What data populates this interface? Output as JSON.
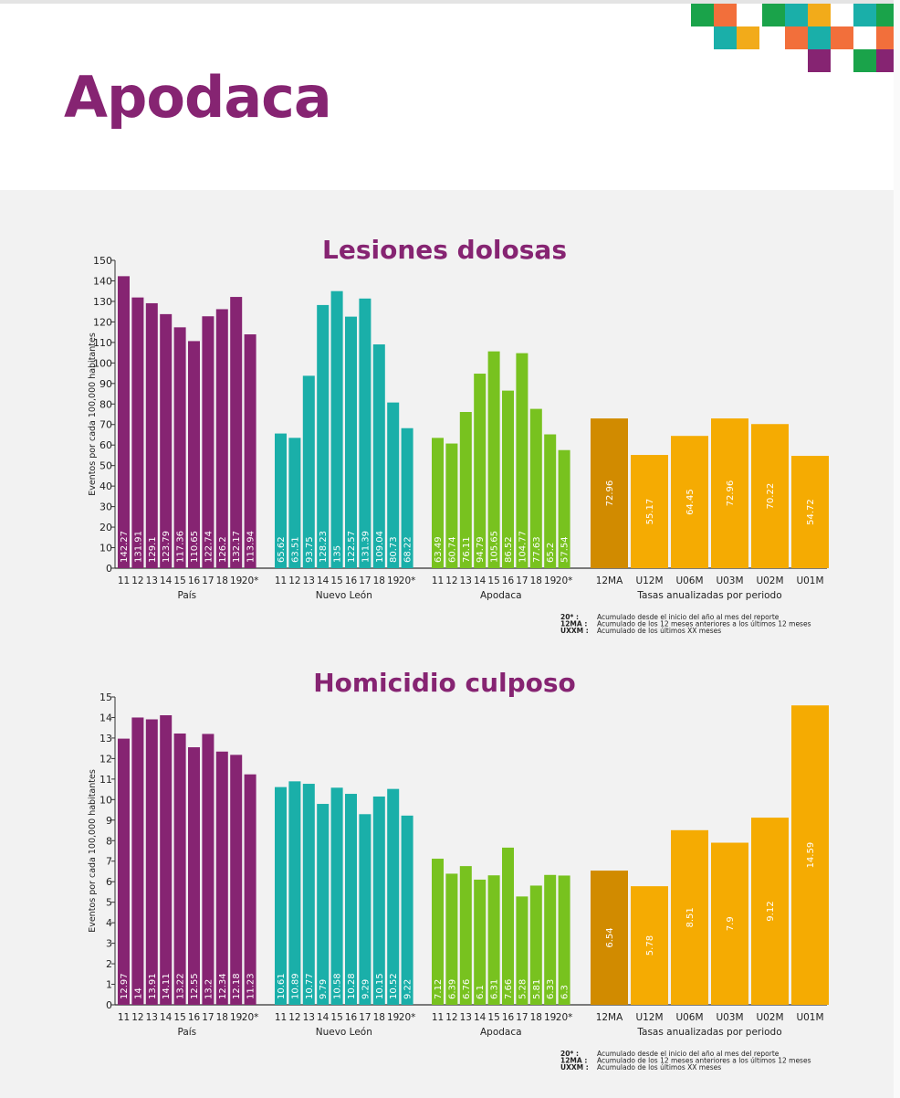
{
  "page": {
    "title": "Apodaca"
  },
  "mosaic_colors": [
    "#1aa34a",
    "#f26f3b",
    "#1aafa9",
    "#f2ab1a",
    "#862472"
  ],
  "chart_data": [
    {
      "type": "bar",
      "title": "Lesiones dolosas",
      "ylabel": "Eventos por cada 100,000 habitantes",
      "ylim": [
        0,
        150
      ],
      "ytick_step": 10,
      "groups": [
        {
          "name": "País",
          "color": "#862472",
          "categories": [
            "11",
            "12",
            "13",
            "14",
            "15",
            "16",
            "17",
            "18",
            "19",
            "20*"
          ],
          "values": [
            142.27,
            131.91,
            129.1,
            123.79,
            117.36,
            110.65,
            122.74,
            126.2,
            132.17,
            113.94
          ]
        },
        {
          "name": "Nuevo León",
          "color": "#1aafa9",
          "categories": [
            "11",
            "12",
            "13",
            "14",
            "15",
            "16",
            "17",
            "18",
            "19",
            "20*"
          ],
          "values": [
            65.62,
            63.51,
            93.75,
            128.23,
            135,
            122.57,
            131.39,
            109.04,
            80.73,
            68.22
          ]
        },
        {
          "name": "Apodaca",
          "color": "#78c21f",
          "categories": [
            "11",
            "12",
            "13",
            "14",
            "15",
            "16",
            "17",
            "18",
            "19",
            "20*"
          ],
          "values": [
            63.49,
            60.74,
            76.11,
            94.79,
            105.65,
            86.52,
            104.77,
            77.63,
            65.2,
            57.54
          ]
        },
        {
          "name": "Tasas anualizadas por periodo",
          "color": "#f5ab02",
          "highlight_color": "#d18b00",
          "categories": [
            "12MA",
            "U12M",
            "U06M",
            "U03M",
            "U02M",
            "U01M"
          ],
          "values": [
            72.96,
            55.17,
            64.45,
            72.96,
            70.22,
            54.72
          ]
        }
      ],
      "legend": [
        {
          "key": "20* :",
          "text": "Acumulado desde el inicio del año al mes del reporte"
        },
        {
          "key": "12MA :",
          "text": "Acumulado de los 12 meses anteriores a los últimos 12 meses"
        },
        {
          "key": "UXXM :",
          "text": "Acumulado de los últimos XX meses"
        }
      ]
    },
    {
      "type": "bar",
      "title": "Homicidio culposo",
      "ylabel": "Eventos por cada 100,000 habitantes",
      "ylim": [
        0,
        15
      ],
      "ytick_step": 1,
      "groups": [
        {
          "name": "País",
          "color": "#862472",
          "categories": [
            "11",
            "12",
            "13",
            "14",
            "15",
            "16",
            "17",
            "18",
            "19",
            "20*"
          ],
          "values": [
            12.97,
            14,
            13.91,
            14.11,
            13.22,
            12.55,
            13.2,
            12.34,
            12.18,
            11.23
          ]
        },
        {
          "name": "Nuevo León",
          "color": "#1aafa9",
          "categories": [
            "11",
            "12",
            "13",
            "14",
            "15",
            "16",
            "17",
            "18",
            "19",
            "20*"
          ],
          "values": [
            10.61,
            10.89,
            10.77,
            9.79,
            10.58,
            10.28,
            9.29,
            10.15,
            10.52,
            9.22
          ]
        },
        {
          "name": "Apodaca",
          "color": "#78c21f",
          "categories": [
            "11",
            "12",
            "13",
            "14",
            "15",
            "16",
            "17",
            "18",
            "19",
            "20*"
          ],
          "values": [
            7.12,
            6.39,
            6.76,
            6.1,
            6.31,
            7.66,
            5.28,
            5.81,
            6.33,
            6.3
          ]
        },
        {
          "name": "Tasas anualizadas por periodo",
          "color": "#f5ab02",
          "highlight_color": "#d18b00",
          "categories": [
            "12MA",
            "U12M",
            "U06M",
            "U03M",
            "U02M",
            "U01M"
          ],
          "values": [
            6.54,
            5.78,
            8.51,
            7.9,
            9.12,
            14.59
          ]
        }
      ],
      "legend": [
        {
          "key": "20* :",
          "text": "Acumulado desde el inicio del año al mes del reporte"
        },
        {
          "key": "12MA :",
          "text": "Acumulado de los 12 meses anteriores a los últimos 12 meses"
        },
        {
          "key": "UXXM :",
          "text": "Acumulado de los últimos XX meses"
        }
      ]
    }
  ]
}
